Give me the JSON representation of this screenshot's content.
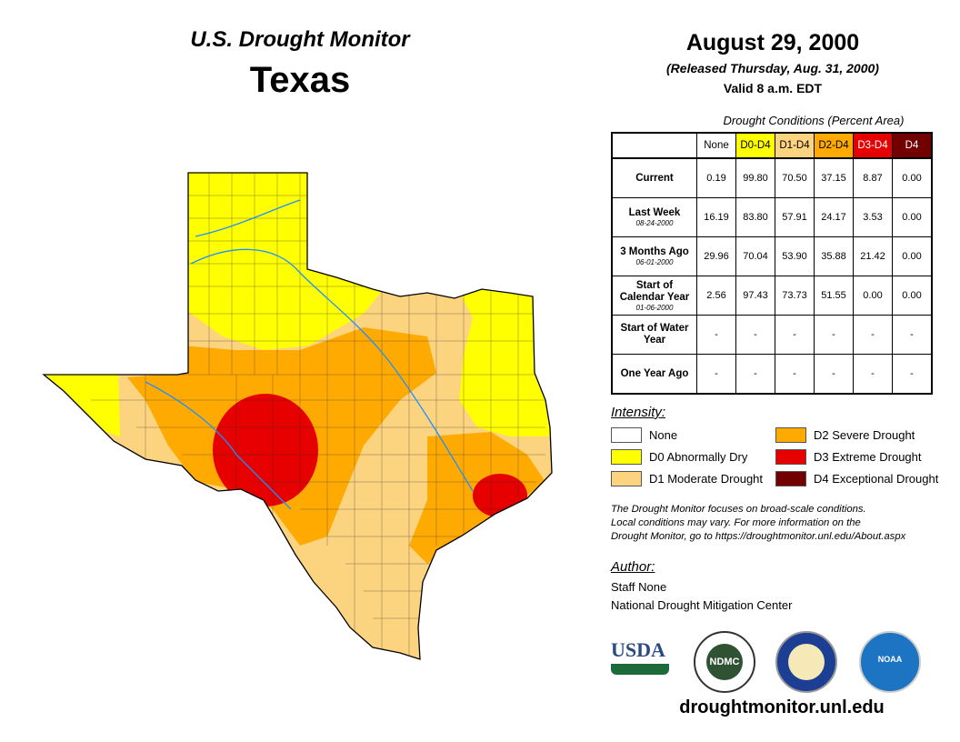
{
  "header": {
    "title": "U.S. Drought Monitor",
    "region": "Texas"
  },
  "date": {
    "map_date": "August 29, 2000",
    "released": "(Released Thursday, Aug. 31, 2000)",
    "valid": "Valid 8 a.m. EDT"
  },
  "table": {
    "caption": "Drought Conditions (Percent Area)",
    "columns": [
      "None",
      "D0-D4",
      "D1-D4",
      "D2-D4",
      "D3-D4",
      "D4"
    ],
    "column_colors": [
      "#ffffff",
      "#ffff00",
      "#fcd37f",
      "#ffaa00",
      "#e60000",
      "#730000"
    ],
    "rows": [
      {
        "label": "Current",
        "sub": "",
        "values": [
          "0.19",
          "99.80",
          "70.50",
          "37.15",
          "8.87",
          "0.00"
        ]
      },
      {
        "label": "Last Week",
        "sub": "08-24-2000",
        "values": [
          "16.19",
          "83.80",
          "57.91",
          "24.17",
          "3.53",
          "0.00"
        ]
      },
      {
        "label": "3 Months Ago",
        "sub": "06-01-2000",
        "values": [
          "29.96",
          "70.04",
          "53.90",
          "35.88",
          "21.42",
          "0.00"
        ]
      },
      {
        "label": "Start of Calendar Year",
        "sub": "01-06-2000",
        "values": [
          "2.56",
          "97.43",
          "73.73",
          "51.55",
          "0.00",
          "0.00"
        ]
      },
      {
        "label": "Start of Water Year",
        "sub": "",
        "values": [
          "-",
          "-",
          "-",
          "-",
          "-",
          "-"
        ]
      },
      {
        "label": "One Year Ago",
        "sub": "",
        "values": [
          "-",
          "-",
          "-",
          "-",
          "-",
          "-"
        ]
      }
    ]
  },
  "legend": {
    "title": "Intensity:",
    "items": [
      {
        "label": "None",
        "color": "#ffffff"
      },
      {
        "label": "D0 Abnormally Dry",
        "color": "#ffff00"
      },
      {
        "label": "D1 Moderate Drought",
        "color": "#fcd37f"
      },
      {
        "label": "D2 Severe Drought",
        "color": "#ffaa00"
      },
      {
        "label": "D3 Extreme Drought",
        "color": "#e60000"
      },
      {
        "label": "D4 Exceptional Drought",
        "color": "#730000"
      }
    ]
  },
  "note": [
    "The Drought Monitor focuses on broad-scale conditions.",
    "Local conditions may vary. For more information on the",
    "Drought Monitor, go to https://droughtmonitor.unl.edu/About.aspx"
  ],
  "author": {
    "title": "Author:",
    "name": "Staff None",
    "org": "National Drought Mitigation Center"
  },
  "logos": {
    "usda": "USDA",
    "ndmc": "NDMC",
    "noaa": "NOAA"
  },
  "footer_url": "droughtmonitor.unl.edu"
}
